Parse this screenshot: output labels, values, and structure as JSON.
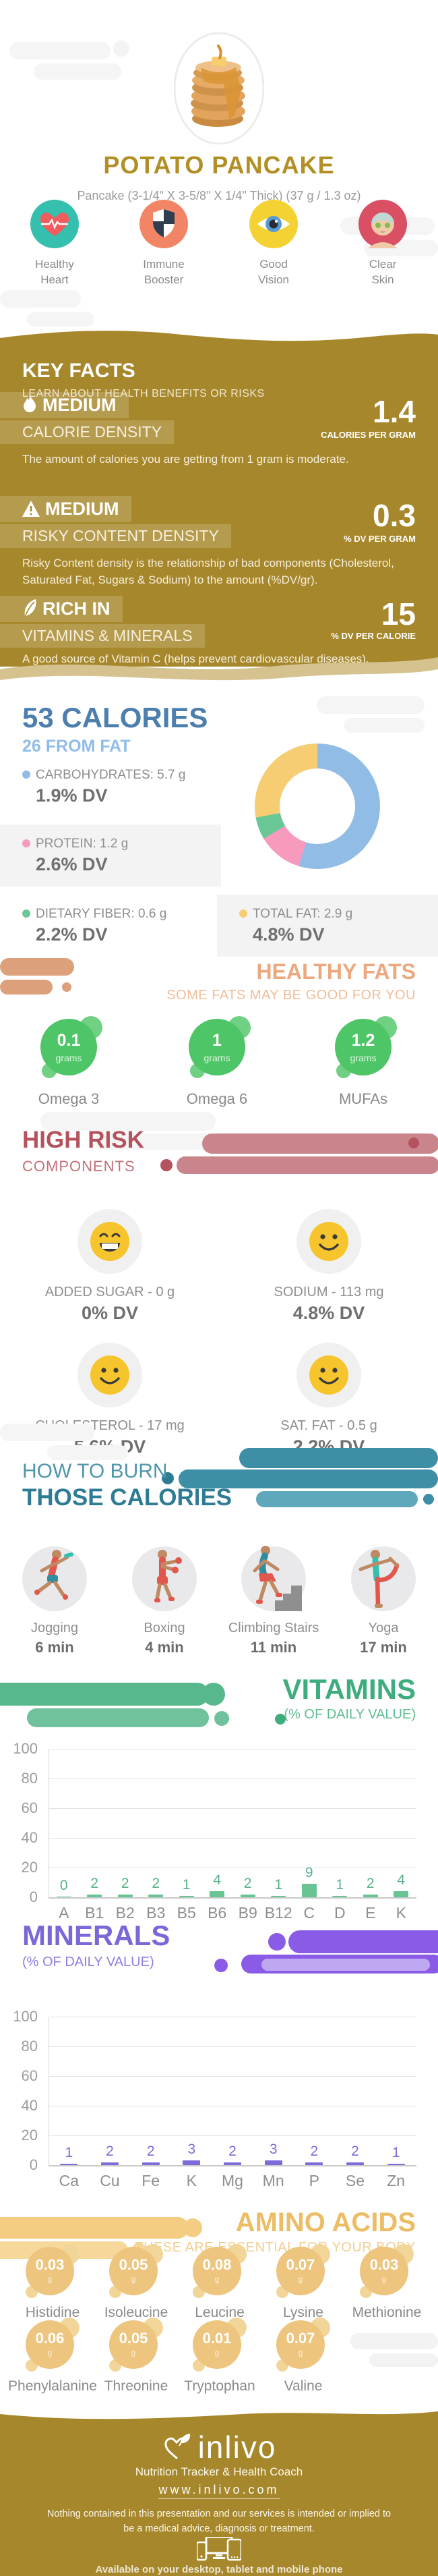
{
  "header": {
    "title": "POTATO PANCAKE",
    "subtitle": "Pancake (3-1/4\" X 3-5/8\" X 1/4\" Thick) (37 g / 1.3 oz)",
    "benefits": [
      {
        "icon": "healthy-heart-icon",
        "line1": "Healthy",
        "line2": "Heart"
      },
      {
        "icon": "immune-booster-icon",
        "line1": "Immune",
        "line2": "Booster"
      },
      {
        "icon": "good-vision-icon",
        "line1": "Good",
        "line2": "Vision"
      },
      {
        "icon": "clear-skin-icon",
        "line1": "Clear",
        "line2": "Skin"
      }
    ]
  },
  "key_facts": {
    "title": "KEY FACTS",
    "subtitle": "LEARN ABOUT HEALTH BENEFITS OR RISKS",
    "facts": [
      {
        "icon": "flame-icon",
        "level": "MEDIUM",
        "name": "CALORIE DENSITY",
        "value": "1.4",
        "unit": "CALORIES PER GRAM",
        "description": "The amount of calories you are getting from 1 gram is moderate."
      },
      {
        "icon": "warning-icon",
        "level": "MEDIUM",
        "name": "RISKY CONTENT DENSITY",
        "value": "0.3",
        "unit": "% DV PER GRAM",
        "description": "Risky Content density is the relationship of bad components (Cholesterol, Saturated Fat, Sugars & Sodium) to the amount (%DV/gr)."
      },
      {
        "icon": "leaf-icon",
        "level": "RICH IN",
        "name": "VITAMINS & MINERALS",
        "value": "15",
        "unit": "% DV PER CALORIE",
        "description": "A good source of Vitamin C (helps prevent cardiovascular diseases)."
      }
    ]
  },
  "calories": {
    "title": "53 CALORIES",
    "subtitle": "26 FROM FAT",
    "macros": [
      {
        "label": "CARBOHYDRATES: 5.7 g",
        "dv": "1.9% DV",
        "color": "#90BCE5"
      },
      {
        "label": "PROTEIN: 1.2 g",
        "dv": "2.6% DV",
        "color": "#F79ABE"
      },
      {
        "label": "DIETARY FIBER: 0.6 g",
        "dv": "2.2% DV",
        "color": "#69C795"
      },
      {
        "label": "TOTAL FAT: 2.9 g",
        "dv": "4.8% DV",
        "color": "#F6CD72"
      }
    ]
  },
  "healthy_fats": {
    "title": "HEALTHY FATS",
    "subtitle": "SOME FATS MAY BE GOOD FOR YOU",
    "items": [
      {
        "value": "0.1",
        "unit": "grams",
        "label": "Omega 3"
      },
      {
        "value": "1",
        "unit": "grams",
        "label": "Omega 6"
      },
      {
        "value": "1.2",
        "unit": "grams",
        "label": "MUFAs"
      }
    ]
  },
  "high_risk": {
    "title": "HIGH RISK",
    "subtitle": "COMPONENTS",
    "items": [
      {
        "face": "grin",
        "label": "ADDED SUGAR - 0 g",
        "dv": "0% DV"
      },
      {
        "face": "smile",
        "label": "SODIUM - 113 mg",
        "dv": "4.8% DV"
      },
      {
        "face": "smile",
        "label": "CHOLESTEROL - 17 mg",
        "dv": "5.6% DV"
      },
      {
        "face": "smile",
        "label": "SAT. FAT - 0.5 g",
        "dv": "2.2% DV"
      }
    ]
  },
  "burn": {
    "title_line1": "HOW TO BURN",
    "title_line2": "THOSE CALORIES",
    "activities": [
      {
        "icon": "jogging-figure-icon",
        "label": "Jogging",
        "duration": "6 min"
      },
      {
        "icon": "boxing-figure-icon",
        "label": "Boxing",
        "duration": "4 min"
      },
      {
        "icon": "climbing-stairs-figure-icon",
        "label": "Climbing Stairs",
        "duration": "11 min"
      },
      {
        "icon": "yoga-figure-icon",
        "label": "Yoga",
        "duration": "17 min"
      }
    ]
  },
  "amino_acids": {
    "title": "AMINO ACIDS",
    "subtitle": "THESE ARE ESSENTIAL FOR YOUR BODY",
    "items": [
      {
        "value": "0.03",
        "unit": "g",
        "label": "Histidine"
      },
      {
        "value": "0.05",
        "unit": "g",
        "label": "Isoleucine"
      },
      {
        "value": "0.08",
        "unit": "g",
        "label": "Leucine"
      },
      {
        "value": "0.07",
        "unit": "g",
        "label": "Lysine"
      },
      {
        "value": "0.03",
        "unit": "g",
        "label": "Methionine"
      },
      {
        "value": "0.06",
        "unit": "g",
        "label": "Phenylalanine"
      },
      {
        "value": "0.05",
        "unit": "g",
        "label": "Threonine"
      },
      {
        "value": "0.01",
        "unit": "g",
        "label": "Tryptophan"
      },
      {
        "value": "0.07",
        "unit": "g",
        "label": "Valine"
      }
    ]
  },
  "footer": {
    "brand": "inlivo",
    "tagline": "Nutrition Tracker & Health Coach",
    "url": "www.inlivo.com",
    "disclaimer": "Nothing contained in this presentation and our services is intended or implied to be a medical advice, diagnosis or treatment.",
    "availability": "Available on your desktop, tablet and mobile phone"
  },
  "colors": {
    "gold": "#A6872B",
    "gold_light_wave": "#D5C28F",
    "blue_title": "#4C7EAE",
    "green_accent": "#3EAD7D",
    "purple_accent": "#7A67D8",
    "salmon_accent": "#ECA87E",
    "red_accent": "#B4525D",
    "teal_accent": "#2E7C94"
  },
  "chart_data": [
    {
      "type": "pie",
      "title": "53 CALORIES macronutrient breakdown (donut)",
      "labels": [
        "CARBOHYDRATES",
        "PROTEIN",
        "DIETARY FIBER",
        "TOTAL FAT"
      ],
      "values": [
        5.7,
        1.2,
        0.6,
        2.9
      ],
      "units": "g",
      "colors": [
        "#90BCE5",
        "#F79ABE",
        "#69C795",
        "#F6CD72"
      ],
      "legend_position": "left"
    },
    {
      "type": "bar",
      "title": "VITAMINS",
      "subtitle": "(% OF DAILY VALUE)",
      "categories": [
        "A",
        "B1",
        "B2",
        "B3",
        "B5",
        "B6",
        "B9",
        "B12",
        "C",
        "D",
        "E",
        "K"
      ],
      "values": [
        0,
        2,
        2,
        2,
        1,
        4,
        2,
        1,
        9,
        1,
        2,
        4
      ],
      "ylim": [
        0,
        100
      ],
      "yticks": [
        0,
        20,
        40,
        60,
        80,
        100
      ],
      "grid": true,
      "bar_color": "#69C493",
      "value_color": "#56B287"
    },
    {
      "type": "bar",
      "title": "MINERALS",
      "subtitle": "(% OF DAILY VALUE)",
      "categories": [
        "Ca",
        "Cu",
        "Fe",
        "K",
        "Mg",
        "Mn",
        "P",
        "Se",
        "Zn"
      ],
      "values": [
        1,
        2,
        2,
        3,
        2,
        3,
        2,
        2,
        1
      ],
      "ylim": [
        0,
        100
      ],
      "yticks": [
        0,
        20,
        40,
        60,
        80,
        100
      ],
      "grid": true,
      "bar_color": "#7D6BD9",
      "value_color": "#7D6BD9"
    }
  ]
}
